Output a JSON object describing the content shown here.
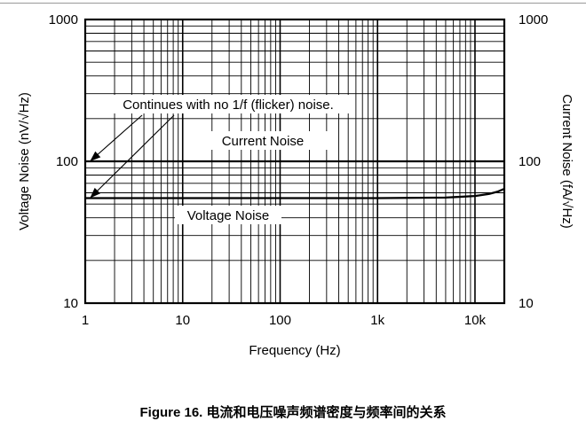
{
  "chart_data": {
    "type": "line",
    "x_scale": "log",
    "y_scale": "log",
    "xlim": [
      1,
      20000
    ],
    "ylim": [
      10,
      1000
    ],
    "x_ticks": [
      {
        "value": 1,
        "label": "1"
      },
      {
        "value": 10,
        "label": "10"
      },
      {
        "value": 100,
        "label": "100"
      },
      {
        "value": 1000,
        "label": "1k"
      },
      {
        "value": 10000,
        "label": "10k"
      }
    ],
    "y_ticks_left": [
      {
        "value": 10,
        "label": "10"
      },
      {
        "value": 100,
        "label": "100"
      },
      {
        "value": 1000,
        "label": "1000"
      }
    ],
    "y_ticks_right": [
      {
        "value": 10,
        "label": "10"
      },
      {
        "value": 100,
        "label": "100"
      },
      {
        "value": 1000,
        "label": "1000"
      }
    ],
    "xlabel": "Frequency (Hz)",
    "ylabel_left": "Voltage Noise (nV/√Hz)",
    "ylabel_right": "Current Noise (fA/√Hz)",
    "grid": true,
    "series": [
      {
        "name": "Current Noise",
        "x": [
          1,
          10,
          100,
          1000,
          10000,
          20000
        ],
        "y": [
          100,
          100,
          100,
          100,
          100,
          100
        ]
      },
      {
        "name": "Voltage Noise",
        "x": [
          1,
          10,
          100,
          1000,
          5000,
          10000,
          14000,
          17000,
          20000
        ],
        "y": [
          55,
          55,
          55,
          55,
          55.5,
          57,
          59,
          61,
          64
        ]
      }
    ],
    "annotation": "Continues with no 1/f (flicker) noise."
  },
  "caption": "Figure 16. 电流和电压噪声频谱密度与频率间的关系"
}
